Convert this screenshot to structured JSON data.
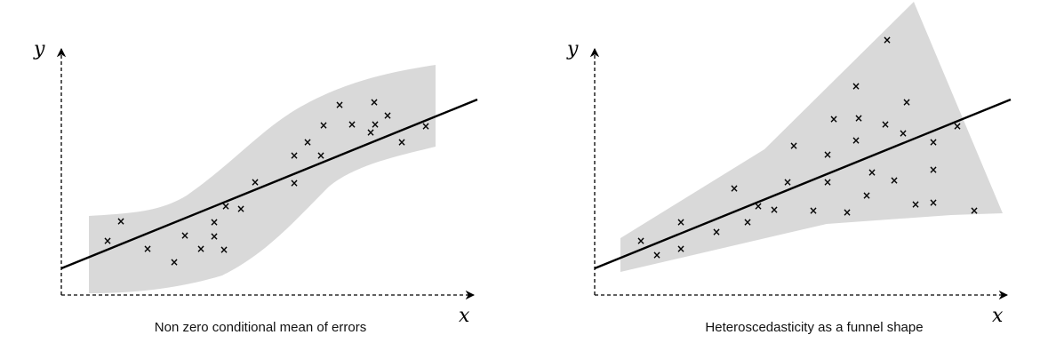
{
  "panels": [
    {
      "caption": "Non zero conditional mean of errors",
      "y_label": "y",
      "x_label": "x",
      "band_color": "#d9d9d9",
      "point_marker": "×"
    },
    {
      "caption": "Heteroscedasticity as a funnel shape",
      "y_label": "y",
      "x_label": "x",
      "band_color": "#d9d9d9",
      "point_marker": "×"
    }
  ]
}
